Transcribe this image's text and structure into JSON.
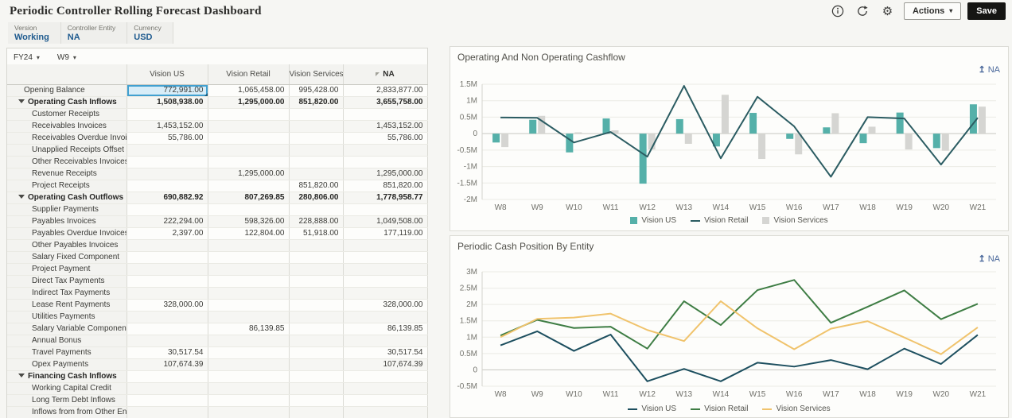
{
  "app": {
    "title": "Periodic Controller Rolling Forecast Dashboard",
    "actions_label": "Actions",
    "save_label": "Save"
  },
  "icons": {
    "caret": "▾",
    "gear": "⚙",
    "drill_up": "↥"
  },
  "pov": {
    "items": [
      {
        "label": "Version",
        "value": "Working"
      },
      {
        "label": "Controller Entity",
        "value": "NA"
      },
      {
        "label": "Currency",
        "value": "USD"
      }
    ]
  },
  "toolbar": {
    "year": "FY24",
    "week": "W9"
  },
  "grid": {
    "columns": [
      "Vision US",
      "Vision Retail",
      "Vision Services",
      "NA"
    ],
    "selected_cell": {
      "row": 0,
      "col": 0
    },
    "rows": [
      {
        "label": "Opening Balance",
        "kind": "top",
        "values": [
          "772,991.00",
          "1,065,458.00",
          "995,428.00",
          "2,833,877.00"
        ]
      },
      {
        "label": "Operating Cash Inflows",
        "kind": "parent",
        "values": [
          "1,508,938.00",
          "1,295,000.00",
          "851,820.00",
          "3,655,758.00"
        ]
      },
      {
        "label": "Customer Receipts",
        "kind": "child",
        "values": [
          "",
          "",
          "",
          ""
        ]
      },
      {
        "label": "Receivables Invoices",
        "kind": "child",
        "values": [
          "1,453,152.00",
          "",
          "",
          "1,453,152.00"
        ]
      },
      {
        "label": "Receivables Overdue Invoices",
        "kind": "child",
        "values": [
          "55,786.00",
          "",
          "",
          "55,786.00"
        ]
      },
      {
        "label": "Unapplied Receipts Offset",
        "kind": "child",
        "values": [
          "",
          "",
          "",
          ""
        ]
      },
      {
        "label": "Other Receivables Invoices",
        "kind": "child",
        "values": [
          "",
          "",
          "",
          ""
        ]
      },
      {
        "label": "Revenue Receipts",
        "kind": "child",
        "values": [
          "",
          "1,295,000.00",
          "",
          "1,295,000.00"
        ]
      },
      {
        "label": "Project Receipts",
        "kind": "child",
        "values": [
          "",
          "",
          "851,820.00",
          "851,820.00"
        ]
      },
      {
        "label": "Operating Cash Outflows",
        "kind": "parent",
        "values": [
          "690,882.92",
          "807,269.85",
          "280,806.00",
          "1,778,958.77"
        ]
      },
      {
        "label": "Supplier Payments",
        "kind": "child",
        "values": [
          "",
          "",
          "",
          ""
        ]
      },
      {
        "label": "Payables Invoices",
        "kind": "child",
        "values": [
          "222,294.00",
          "598,326.00",
          "228,888.00",
          "1,049,508.00"
        ]
      },
      {
        "label": "Payables Overdue Invoices",
        "kind": "child",
        "values": [
          "2,397.00",
          "122,804.00",
          "51,918.00",
          "177,119.00"
        ]
      },
      {
        "label": "Other Payables Invoices",
        "kind": "child",
        "values": [
          "",
          "",
          "",
          ""
        ]
      },
      {
        "label": "Salary Fixed  Component",
        "kind": "child",
        "values": [
          "",
          "",
          "",
          ""
        ]
      },
      {
        "label": "Project Payment",
        "kind": "child",
        "values": [
          "",
          "",
          "",
          ""
        ]
      },
      {
        "label": "Direct Tax Payments",
        "kind": "child",
        "values": [
          "",
          "",
          "",
          ""
        ]
      },
      {
        "label": "Indirect Tax Payments",
        "kind": "child",
        "values": [
          "",
          "",
          "",
          ""
        ]
      },
      {
        "label": "Lease Rent Payments",
        "kind": "child",
        "values": [
          "328,000.00",
          "",
          "",
          "328,000.00"
        ]
      },
      {
        "label": "Utilities Payments",
        "kind": "child",
        "values": [
          "",
          "",
          "",
          ""
        ]
      },
      {
        "label": "Salary Variable Component",
        "kind": "child",
        "values": [
          "",
          "86,139.85",
          "",
          "86,139.85"
        ]
      },
      {
        "label": "Annual Bonus",
        "kind": "child",
        "values": [
          "",
          "",
          "",
          ""
        ]
      },
      {
        "label": "Travel Payments",
        "kind": "child",
        "values": [
          "30,517.54",
          "",
          "",
          "30,517.54"
        ]
      },
      {
        "label": "Opex Payments",
        "kind": "child",
        "values": [
          "107,674.39",
          "",
          "",
          "107,674.39"
        ]
      },
      {
        "label": "Financing Cash Inflows",
        "kind": "parent",
        "values": [
          "",
          "",
          "",
          ""
        ]
      },
      {
        "label": "Working Capital Credit",
        "kind": "child",
        "values": [
          "",
          "",
          "",
          ""
        ]
      },
      {
        "label": "Long Term Debt Inflows",
        "kind": "child",
        "values": [
          "",
          "",
          "",
          ""
        ]
      },
      {
        "label": "Inflows from from Other Entities",
        "kind": "child",
        "values": [
          "",
          "",
          "",
          ""
        ]
      }
    ]
  },
  "chart_data": [
    {
      "type": "combo-bar-line",
      "title": "Operating And Non Operating Cashflow",
      "context_label": "NA",
      "unit": "millions",
      "categories": [
        "W8",
        "W9",
        "W10",
        "W11",
        "W12",
        "W13",
        "W14",
        "W15",
        "W16",
        "W17",
        "W18",
        "W19",
        "W20",
        "W21"
      ],
      "ylim": [
        -2,
        1.5
      ],
      "yticks": [
        {
          "v": 1.5,
          "label": "1.5M"
        },
        {
          "v": 1,
          "label": "1M"
        },
        {
          "v": 0.5,
          "label": "0.5M"
        },
        {
          "v": 0,
          "label": "0"
        },
        {
          "v": -0.5,
          "label": "-0.5M"
        },
        {
          "v": -1,
          "label": "-1M"
        },
        {
          "v": -1.5,
          "label": "-1.5M"
        },
        {
          "v": -2,
          "label": "-2M"
        }
      ],
      "bar_series": [
        {
          "name": "Vision US",
          "color": "#55b0a9",
          "values": [
            -0.27,
            0.42,
            -0.57,
            0.46,
            -1.52,
            0.44,
            -0.39,
            0.63,
            -0.16,
            0.19,
            -0.29,
            0.64,
            -0.44,
            0.89
          ]
        },
        {
          "name": "Vision Services",
          "color": "#d5d5d2",
          "values": [
            -0.41,
            0.54,
            0.04,
            0.1,
            -0.48,
            -0.31,
            1.18,
            -0.77,
            -0.63,
            0.62,
            0.21,
            -0.48,
            -0.52,
            0.82
          ]
        }
      ],
      "line_series": [
        {
          "name": "Vision Retail",
          "color": "#2b5c62",
          "values": [
            0.49,
            0.48,
            -0.27,
            0.05,
            -0.7,
            1.45,
            -0.75,
            1.12,
            0.22,
            -1.31,
            0.5,
            0.46,
            -0.94,
            0.48
          ]
        }
      ],
      "legend": [
        {
          "name": "Vision US",
          "swatch": "square",
          "color": "#55b0a9"
        },
        {
          "name": "Vision Retail",
          "swatch": "line",
          "color": "#2b5c62"
        },
        {
          "name": "Vision Services",
          "swatch": "square",
          "color": "#d5d5d2"
        }
      ]
    },
    {
      "type": "line",
      "title": "Periodic Cash Position By Entity",
      "context_label": "NA",
      "unit": "millions",
      "categories": [
        "W8",
        "W9",
        "W10",
        "W11",
        "W12",
        "W13",
        "W14",
        "W15",
        "W16",
        "W17",
        "W18",
        "W19",
        "W20",
        "W21"
      ],
      "ylim": [
        -0.5,
        3
      ],
      "yticks": [
        {
          "v": 3,
          "label": "3M"
        },
        {
          "v": 2.5,
          "label": "2.5M"
        },
        {
          "v": 2,
          "label": "2M"
        },
        {
          "v": 1.5,
          "label": "1.5M"
        },
        {
          "v": 1,
          "label": "1M"
        },
        {
          "v": 0.5,
          "label": "0.5M"
        },
        {
          "v": 0,
          "label": "0"
        },
        {
          "v": -0.5,
          "label": "-0.5M"
        }
      ],
      "line_series": [
        {
          "name": "Vision US",
          "color": "#1d4f5f",
          "values": [
            0.75,
            1.18,
            0.58,
            1.08,
            -0.35,
            0.03,
            -0.35,
            0.22,
            0.1,
            0.3,
            0.02,
            0.65,
            0.18,
            1.07
          ]
        },
        {
          "name": "Vision Retail",
          "color": "#3e7d44",
          "values": [
            1.05,
            1.53,
            1.28,
            1.32,
            0.65,
            2.1,
            1.37,
            2.44,
            2.75,
            1.44,
            1.93,
            2.43,
            1.55,
            2.02
          ]
        },
        {
          "name": "Vision Services",
          "color": "#f0c36c",
          "values": [
            1.0,
            1.56,
            1.6,
            1.72,
            1.22,
            0.88,
            2.1,
            1.27,
            0.63,
            1.26,
            1.49,
            0.99,
            0.48,
            1.3
          ]
        }
      ],
      "legend": [
        {
          "name": "Vision US",
          "swatch": "line",
          "color": "#1d4f5f"
        },
        {
          "name": "Vision Retail",
          "swatch": "line",
          "color": "#3e7d44"
        },
        {
          "name": "Vision Services",
          "swatch": "line",
          "color": "#f0c36c"
        }
      ]
    }
  ],
  "colors": {
    "pov_value_blue": "#1f5b8f",
    "context_link_blue": "#4a689b",
    "selected_cell_bg": "#d8edf8",
    "selected_cell_border": "#41a0d0",
    "save_button_bg": "#151513"
  }
}
